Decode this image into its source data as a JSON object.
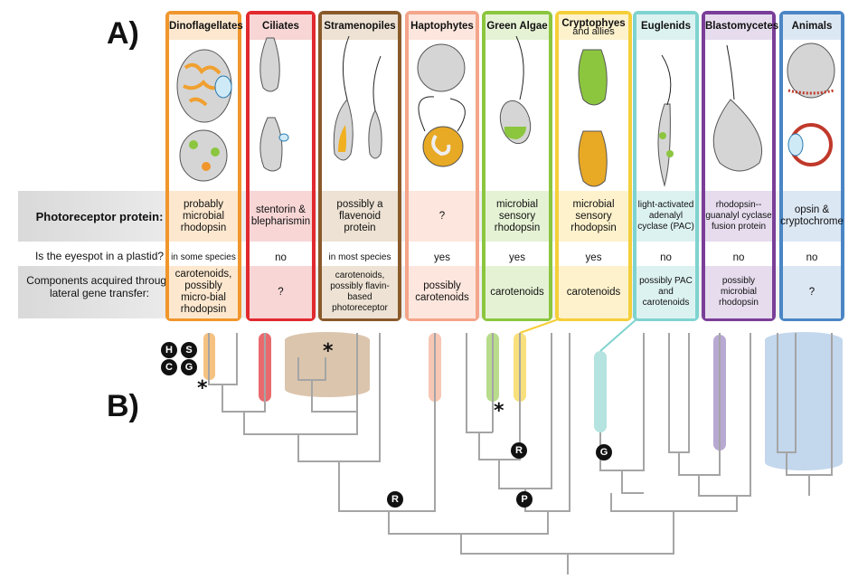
{
  "panels": {
    "a": "A)",
    "b": "B)"
  },
  "rows": {
    "photoreceptor": "Photoreceptor protein:",
    "eyespot": "Is the eyespot in a plastid?",
    "lgt": "Components acquired through lateral gene transfer:"
  },
  "columns": [
    {
      "name": "Dinoflagellates",
      "sub": "",
      "color": "#f0962c",
      "tint": "#fde8cf",
      "photo": "probably microbial rhodopsin",
      "plastid": "in some species",
      "lgt": "carotenoids, possibly micro-bial rhodopsin"
    },
    {
      "name": "Ciliates",
      "sub": "",
      "color": "#e12a2f",
      "tint": "#f8d6d6",
      "photo": "stentorin & blepharismin",
      "plastid": "no",
      "lgt": "?"
    },
    {
      "name": "Stramenopiles",
      "sub": "",
      "color": "#8a5a2b",
      "tint": "#ede2d3",
      "photo": "possibly a flavenoid protein",
      "plastid": "in most species",
      "lgt": "carotenoids, possibly flavin-based photoreceptor"
    },
    {
      "name": "Haptophytes",
      "sub": "",
      "color": "#f4a58a",
      "tint": "#fde6dd",
      "photo": "?",
      "plastid": "yes",
      "lgt": "possibly carotenoids"
    },
    {
      "name": "Green Algae",
      "sub": "",
      "color": "#8cc63f",
      "tint": "#e5f2d4",
      "photo": "microbial sensory rhodopsin",
      "plastid": "yes",
      "lgt": "carotenoids"
    },
    {
      "name": "Cryptophyes",
      "sub": "and allies",
      "color": "#f5cf3a",
      "tint": "#fdf2cc",
      "photo": "microbial sensory rhodopsin",
      "plastid": "yes",
      "lgt": "carotenoids"
    },
    {
      "name": "Euglenids",
      "sub": "",
      "color": "#7fd3cf",
      "tint": "#dcf2f1",
      "photo": "light-activated adenalyl cyclase (PAC)",
      "plastid": "no",
      "lgt": "possibly PAC and carotenoids"
    },
    {
      "name": "Blastomycetes",
      "sub": "",
      "color": "#7a3e98",
      "tint": "#e6dcee",
      "photo": "rhodopsin--guanalyl cyclase fusion protein",
      "plastid": "no",
      "lgt": "possibly microbial rhodopsin"
    },
    {
      "name": "Animals",
      "sub": "",
      "color": "#4a86c5",
      "tint": "#dce7f4",
      "photo": "opsin & cryptochrome",
      "plastid": "no",
      "lgt": "?"
    }
  ],
  "markers": {
    "h": "H",
    "s": "S",
    "c": "C",
    "g": "G",
    "r": "R",
    "p": "P"
  },
  "star": "*"
}
